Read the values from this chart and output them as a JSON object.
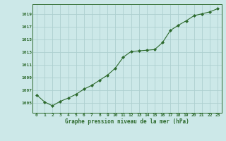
{
  "x": [
    0,
    1,
    2,
    3,
    4,
    5,
    6,
    7,
    8,
    9,
    10,
    11,
    12,
    13,
    14,
    15,
    16,
    17,
    18,
    19,
    20,
    21,
    22,
    23
  ],
  "y": [
    1006.3,
    1005.2,
    1004.6,
    1005.3,
    1005.8,
    1006.4,
    1007.2,
    1007.8,
    1008.6,
    1009.4,
    1010.5,
    1012.2,
    1013.1,
    1013.2,
    1013.3,
    1013.4,
    1014.5,
    1016.4,
    1017.2,
    1017.9,
    1018.7,
    1019.0,
    1019.3,
    1019.8
  ],
  "line_color": "#2d6a2d",
  "marker_color": "#2d6a2d",
  "bg_color": "#cce8e8",
  "grid_color": "#add0d0",
  "xlabel": "Graphe pression niveau de la mer (hPa)",
  "xlabel_color": "#2d6a2d",
  "tick_color": "#2d6a2d",
  "ylim": [
    1003.5,
    1020.5
  ],
  "yticks": [
    1005,
    1007,
    1009,
    1011,
    1013,
    1015,
    1017,
    1019
  ],
  "xlim": [
    -0.5,
    23.5
  ],
  "xticks": [
    0,
    1,
    2,
    3,
    4,
    5,
    6,
    7,
    8,
    9,
    10,
    11,
    12,
    13,
    14,
    15,
    16,
    17,
    18,
    19,
    20,
    21,
    22,
    23
  ]
}
